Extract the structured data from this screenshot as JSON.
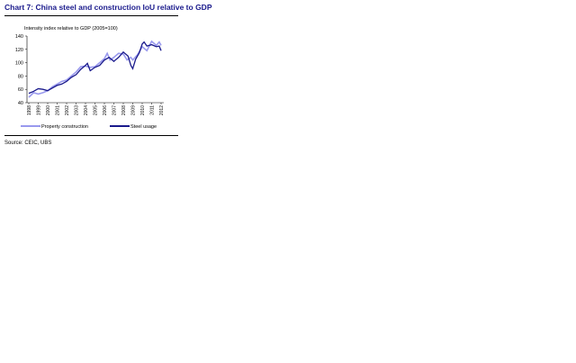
{
  "title": "Chart 7: China steel and construction IoU relative to GDP",
  "source": "Source: CEIC, UBS",
  "chart_data": {
    "type": "line",
    "ylabel": "Intensity index relative to GDP (2005=100)",
    "ylim": [
      40,
      140
    ],
    "yticks": [
      40,
      60,
      80,
      100,
      120,
      140
    ],
    "xticks": [
      "1998",
      "1999",
      "2000",
      "2001",
      "2002",
      "2003",
      "2004",
      "2005",
      "2006",
      "2007",
      "2008",
      "2009",
      "2010",
      "2011",
      "2012"
    ],
    "grid": false,
    "legend_placement": "bottom",
    "series": [
      {
        "name": "Property construction",
        "color": "#9999ee",
        "x": [
          1998,
          1998.5,
          1999,
          1999.5,
          2000,
          2000.5,
          2001,
          2001.5,
          2002,
          2002.5,
          2003,
          2003.5,
          2004,
          2004.5,
          2005,
          2005.5,
          2006,
          2006.3,
          2006.6,
          2007,
          2007.5,
          2008,
          2008.4,
          2008.8,
          2009,
          2009.5,
          2010,
          2010.5,
          2011,
          2011.5,
          2011.8,
          2012
        ],
        "values": [
          48,
          55,
          53,
          55,
          58,
          64,
          68,
          72,
          74,
          80,
          86,
          94,
          95,
          93,
          94,
          100,
          106,
          114,
          104,
          108,
          114,
          113,
          104,
          108,
          104,
          112,
          124,
          118,
          132,
          126,
          131,
          126
        ]
      },
      {
        "name": "Steel usage",
        "color": "#1a1a8c",
        "x": [
          1998,
          1998.5,
          1999,
          1999.5,
          2000,
          2000.5,
          2001,
          2001.5,
          2002,
          2002.5,
          2003,
          2003.5,
          2004,
          2004.2,
          2004.5,
          2005,
          2005.5,
          2006,
          2006.5,
          2007,
          2007.5,
          2008,
          2008.5,
          2008.8,
          2009,
          2009.3,
          2009.7,
          2010,
          2010.2,
          2010.5,
          2011,
          2011.5,
          2011.8,
          2012
        ],
        "values": [
          54,
          57,
          61,
          60,
          58,
          62,
          66,
          68,
          72,
          78,
          82,
          90,
          96,
          99,
          88,
          93,
          96,
          104,
          108,
          102,
          108,
          116,
          110,
          96,
          91,
          105,
          115,
          128,
          131,
          125,
          127,
          124,
          125,
          118
        ]
      }
    ]
  }
}
